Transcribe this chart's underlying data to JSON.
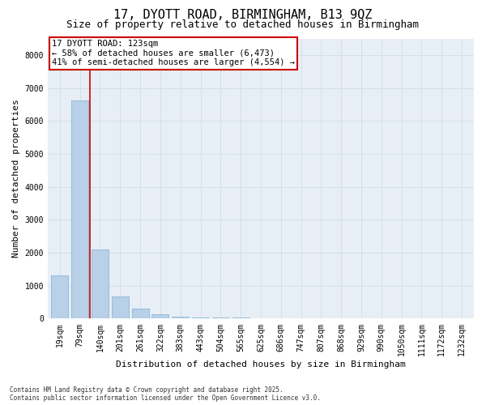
{
  "title_line1": "17, DYOTT ROAD, BIRMINGHAM, B13 9QZ",
  "title_line2": "Size of property relative to detached houses in Birmingham",
  "xlabel": "Distribution of detached houses by size in Birmingham",
  "ylabel": "Number of detached properties",
  "categories": [
    "19sqm",
    "79sqm",
    "140sqm",
    "201sqm",
    "261sqm",
    "322sqm",
    "383sqm",
    "443sqm",
    "504sqm",
    "565sqm",
    "625sqm",
    "686sqm",
    "747sqm",
    "807sqm",
    "868sqm",
    "929sqm",
    "990sqm",
    "1050sqm",
    "1111sqm",
    "1172sqm",
    "1232sqm"
  ],
  "values": [
    1320,
    6630,
    2100,
    670,
    310,
    130,
    70,
    40,
    40,
    40,
    0,
    0,
    0,
    0,
    0,
    0,
    0,
    0,
    0,
    0,
    0
  ],
  "bar_color": "#b8d0e8",
  "bar_edgecolor": "#7aafd4",
  "vline_color": "#cc0000",
  "annotation_text": "17 DYOTT ROAD: 123sqm\n← 58% of detached houses are smaller (6,473)\n41% of semi-detached houses are larger (4,554) →",
  "annotation_box_color": "#cc0000",
  "ylim": [
    0,
    8500
  ],
  "yticks": [
    0,
    1000,
    2000,
    3000,
    4000,
    5000,
    6000,
    7000,
    8000
  ],
  "grid_color": "#d0dde8",
  "bg_color": "#e8eef5",
  "footnote": "Contains HM Land Registry data © Crown copyright and database right 2025.\nContains public sector information licensed under the Open Government Licence v3.0.",
  "title_fontsize": 11,
  "subtitle_fontsize": 9,
  "axis_label_fontsize": 8,
  "tick_fontsize": 7,
  "annot_fontsize": 7.5
}
